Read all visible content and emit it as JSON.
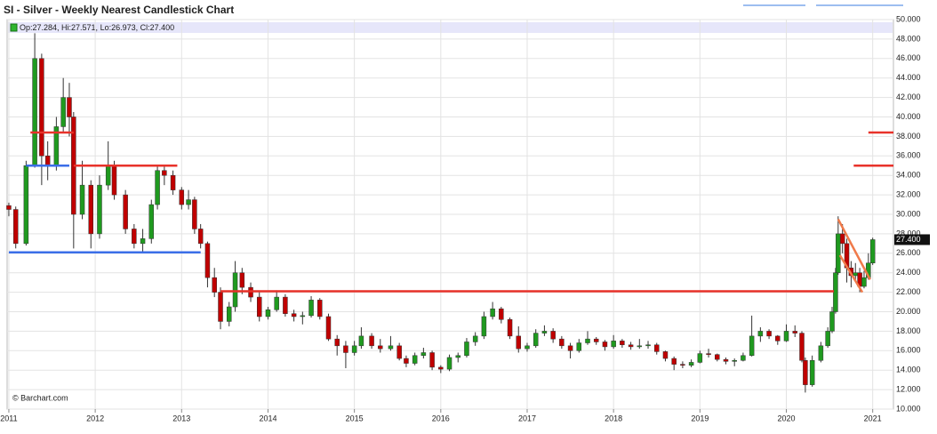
{
  "chart_data": {
    "type": "candlestick",
    "title": "SI - Silver - Weekly Nearest Candlestick Chart",
    "info": "Op:27.284, Hi:27.571, Lo:26.973, Cl:27.400",
    "credit": "© Barchart.com",
    "up_color": "#1f9a1f",
    "down_color": "#c00000",
    "xlim": [
      2010.98,
      2021.24
    ],
    "xticks": [
      2011,
      2012,
      2013,
      2014,
      2015,
      2016,
      2017,
      2018,
      2019,
      2020,
      2021
    ],
    "ylim": [
      10,
      50
    ],
    "yticks": [
      {
        "value": 10,
        "label": "10.000"
      },
      {
        "value": 12,
        "label": "12.000"
      },
      {
        "value": 14,
        "label": "14.000"
      },
      {
        "value": 16,
        "label": "16.000"
      },
      {
        "value": 18,
        "label": "18.000"
      },
      {
        "value": 20,
        "label": "20.000"
      },
      {
        "value": 22,
        "label": "22.000"
      },
      {
        "value": 24,
        "label": "24.000"
      },
      {
        "value": 26,
        "label": "26.000"
      },
      {
        "value": 28,
        "label": "28.000"
      },
      {
        "value": 30,
        "label": "30.000"
      },
      {
        "value": 32,
        "label": "32.000"
      },
      {
        "value": 34,
        "label": "34.000"
      },
      {
        "value": 36,
        "label": "36.000"
      },
      {
        "value": 38,
        "label": "38.000"
      },
      {
        "value": 40,
        "label": "40.000"
      },
      {
        "value": 42,
        "label": "42.000"
      },
      {
        "value": 44,
        "label": "44.000"
      },
      {
        "value": 46,
        "label": "46.000"
      },
      {
        "value": 48,
        "label": "48.000"
      },
      {
        "value": 50,
        "label": "50.000"
      }
    ],
    "grid": true,
    "last_price": {
      "value": 27.4,
      "label": "27.400"
    },
    "x": [
      2011.0,
      2011.08,
      2011.2,
      2011.3,
      2011.38,
      2011.45,
      2011.55,
      2011.63,
      2011.7,
      2011.75,
      2011.85,
      2011.95,
      2012.05,
      2012.15,
      2012.22,
      2012.35,
      2012.45,
      2012.55,
      2012.65,
      2012.72,
      2012.8,
      2012.9,
      2013.0,
      2013.08,
      2013.15,
      2013.22,
      2013.3,
      2013.38,
      2013.45,
      2013.55,
      2013.62,
      2013.7,
      2013.8,
      2013.9,
      2014.0,
      2014.1,
      2014.2,
      2014.3,
      2014.4,
      2014.5,
      2014.6,
      2014.7,
      2014.8,
      2014.9,
      2015.0,
      2015.08,
      2015.2,
      2015.3,
      2015.42,
      2015.52,
      2015.6,
      2015.7,
      2015.8,
      2015.9,
      2016.0,
      2016.1,
      2016.2,
      2016.3,
      2016.4,
      2016.5,
      2016.6,
      2016.7,
      2016.8,
      2016.9,
      2017.0,
      2017.1,
      2017.2,
      2017.3,
      2017.4,
      2017.5,
      2017.6,
      2017.7,
      2017.8,
      2017.9,
      2018.0,
      2018.1,
      2018.2,
      2018.3,
      2018.4,
      2018.5,
      2018.6,
      2018.7,
      2018.8,
      2018.9,
      2019.0,
      2019.1,
      2019.2,
      2019.3,
      2019.4,
      2019.5,
      2019.6,
      2019.7,
      2019.8,
      2019.9,
      2020.0,
      2020.1,
      2020.18,
      2020.22,
      2020.3,
      2020.4,
      2020.48,
      2020.53,
      2020.57,
      2020.6,
      2020.65,
      2020.7,
      2020.75,
      2020.8,
      2020.85,
      2020.9,
      2020.95,
      2021.0
    ],
    "open": [
      30.9,
      30.5,
      27.0,
      35.0,
      46.0,
      36.0,
      35.0,
      39.0,
      42.0,
      40.0,
      30.0,
      33.0,
      28.0,
      33.0,
      35.0,
      32.0,
      28.5,
      27.0,
      27.5,
      31.0,
      34.5,
      34.0,
      32.5,
      31.0,
      31.5,
      28.5,
      27.0,
      23.5,
      22.0,
      19.0,
      20.5,
      24.0,
      22.5,
      21.5,
      19.5,
      20.2,
      21.5,
      19.8,
      19.5,
      19.6,
      21.2,
      19.5,
      17.2,
      16.5,
      15.8,
      16.5,
      17.5,
      16.5,
      16.2,
      16.5,
      15.2,
      14.7,
      15.5,
      15.8,
      14.3,
      14.1,
      15.3,
      15.5,
      16.9,
      17.5,
      19.5,
      20.3,
      19.2,
      17.5,
      16.2,
      16.5,
      17.8,
      18.0,
      17.2,
      16.5,
      16.0,
      16.8,
      17.2,
      16.9,
      16.4,
      17.0,
      16.6,
      16.4,
      16.5,
      16.6,
      15.9,
      15.2,
      14.6,
      14.5,
      14.8,
      15.7,
      15.6,
      15.1,
      14.9,
      15.0,
      15.5,
      17.5,
      18.0,
      17.5,
      17.0,
      18.0,
      17.8,
      15.0,
      12.5,
      15.0,
      16.5,
      18.0,
      20.0,
      24.0,
      28.0,
      27.0,
      24.5,
      23.7,
      24.0,
      22.6,
      23.5,
      25.0
    ],
    "high": [
      31.2,
      30.8,
      35.5,
      48.6,
      46.5,
      37.5,
      40.0,
      44.0,
      43.5,
      40.5,
      35.5,
      33.5,
      34.0,
      37.5,
      35.5,
      32.5,
      29.0,
      28.5,
      31.5,
      35.0,
      35.0,
      34.5,
      32.8,
      32.5,
      31.8,
      29.0,
      27.2,
      24.5,
      22.5,
      21.0,
      25.2,
      24.5,
      23.0,
      22.0,
      20.5,
      22.2,
      21.8,
      20.2,
      20.0,
      21.6,
      21.4,
      19.8,
      17.6,
      17.0,
      17.0,
      18.4,
      17.8,
      17.2,
      17.5,
      16.8,
      15.5,
      15.8,
      16.3,
      16.0,
      14.5,
      15.6,
      15.8,
      17.3,
      17.9,
      20.0,
      21.0,
      20.5,
      19.4,
      18.5,
      16.8,
      18.2,
      18.6,
      18.3,
      17.5,
      16.8,
      17.2,
      18.0,
      17.4,
      17.1,
      17.6,
      17.2,
      16.9,
      17.2,
      17.0,
      16.8,
      16.0,
      15.4,
      14.9,
      15.1,
      16.0,
      16.2,
      15.7,
      15.3,
      15.2,
      15.8,
      19.6,
      18.4,
      18.2,
      17.6,
      18.7,
      18.6,
      18.0,
      15.3,
      15.5,
      16.9,
      18.4,
      20.5,
      24.5,
      29.8,
      29.0,
      27.5,
      25.2,
      25.0,
      24.5,
      24.2,
      26.0,
      27.6
    ],
    "low": [
      29.8,
      26.5,
      26.8,
      34.8,
      33.0,
      33.5,
      34.5,
      38.5,
      38.0,
      26.5,
      29.5,
      26.5,
      27.5,
      32.5,
      31.5,
      28.0,
      26.5,
      26.2,
      27.0,
      30.5,
      33.0,
      32.0,
      30.5,
      30.5,
      28.0,
      26.5,
      22.5,
      21.5,
      18.2,
      18.5,
      20.0,
      21.8,
      21.0,
      19.0,
      19.2,
      20.0,
      19.5,
      19.0,
      18.7,
      19.4,
      19.2,
      17.0,
      15.5,
      14.2,
      15.5,
      16.2,
      16.2,
      15.8,
      16.0,
      15.0,
      14.3,
      14.5,
      15.2,
      14.0,
      13.7,
      13.9,
      14.8,
      15.3,
      16.5,
      17.2,
      19.2,
      18.8,
      17.2,
      15.8,
      15.9,
      16.3,
      17.5,
      16.8,
      16.2,
      15.2,
      15.8,
      16.6,
      16.6,
      16.0,
      16.2,
      16.3,
      16.1,
      16.2,
      16.2,
      15.6,
      14.9,
      14.0,
      14.2,
      14.3,
      14.7,
      15.3,
      14.9,
      14.6,
      14.4,
      14.9,
      15.4,
      16.9,
      17.2,
      16.6,
      16.9,
      17.4,
      14.8,
      11.7,
      12.3,
      14.8,
      16.3,
      17.8,
      19.8,
      23.8,
      26.0,
      23.0,
      22.5,
      23.2,
      22.0,
      22.4,
      23.3,
      24.8
    ],
    "close": [
      30.5,
      27.0,
      35.0,
      46.0,
      36.0,
      35.0,
      39.0,
      42.0,
      40.0,
      30.0,
      33.0,
      28.0,
      33.0,
      35.0,
      32.0,
      28.5,
      27.0,
      27.5,
      31.0,
      34.5,
      34.0,
      32.5,
      31.0,
      31.5,
      28.5,
      27.0,
      23.5,
      22.0,
      19.0,
      20.5,
      24.0,
      22.5,
      21.5,
      19.5,
      20.2,
      21.5,
      19.8,
      19.5,
      19.6,
      21.2,
      19.5,
      17.2,
      16.5,
      15.8,
      16.5,
      17.5,
      16.5,
      16.2,
      16.5,
      15.2,
      14.7,
      15.5,
      15.8,
      14.3,
      14.1,
      15.3,
      15.5,
      16.9,
      17.5,
      19.5,
      20.3,
      19.2,
      17.5,
      16.2,
      16.5,
      17.8,
      18.0,
      17.2,
      16.5,
      16.0,
      16.8,
      17.2,
      16.9,
      16.4,
      17.0,
      16.6,
      16.4,
      16.5,
      16.6,
      15.9,
      15.2,
      14.6,
      14.5,
      14.8,
      15.7,
      15.6,
      15.1,
      14.9,
      15.0,
      15.5,
      17.5,
      18.0,
      17.5,
      17.0,
      18.0,
      17.8,
      15.0,
      12.5,
      15.0,
      16.5,
      18.0,
      20.0,
      24.0,
      28.0,
      27.0,
      24.5,
      23.7,
      24.0,
      22.6,
      23.5,
      25.0,
      27.4
    ],
    "annotations": [
      {
        "x": [
          2011.25,
          2011.75
        ],
        "y": [
          38.4,
          38.4
        ],
        "color": "#e8322a"
      },
      {
        "x": [
          2011.2,
          2011.7
        ],
        "y": [
          35.0,
          35.0
        ],
        "color": "#3b6ee8"
      },
      {
        "x": [
          2011.75,
          2012.95
        ],
        "y": [
          35.0,
          35.0
        ],
        "color": "#e8322a"
      },
      {
        "x": [
          2011.0,
          2013.22
        ],
        "y": [
          26.1,
          26.1
        ],
        "color": "#3b6ee8"
      },
      {
        "x": [
          2013.45,
          2020.55
        ],
        "y": [
          22.1,
          22.1
        ],
        "color": "#e8322a"
      },
      {
        "x": [
          2020.95,
          2021.24
        ],
        "y": [
          38.4,
          38.4
        ],
        "color": "#e8322a"
      },
      {
        "x": [
          2020.78,
          2021.24
        ],
        "y": [
          35.0,
          35.0
        ],
        "color": "#e8322a"
      },
      {
        "x": [
          2020.6,
          2020.97
        ],
        "y": [
          29.5,
          23.3
        ],
        "color": "#f07a4a"
      },
      {
        "x": [
          2020.62,
          2020.88
        ],
        "y": [
          25.8,
          22.0
        ],
        "color": "#f07a4a"
      }
    ]
  }
}
